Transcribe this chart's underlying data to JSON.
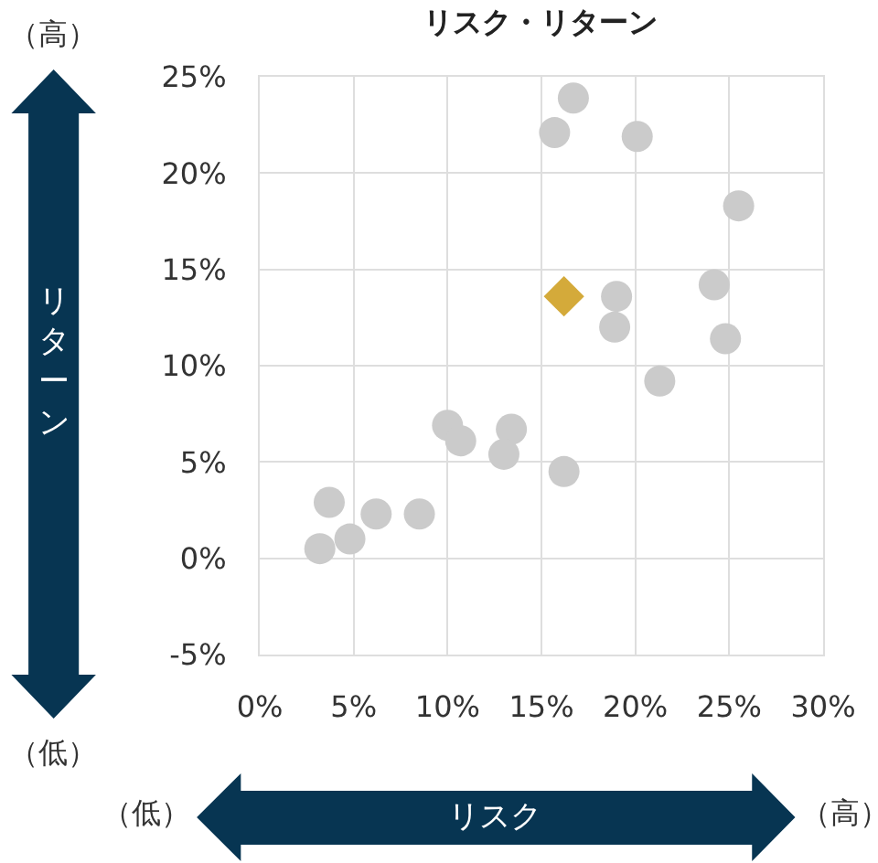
{
  "chart_data": {
    "type": "scatter",
    "title": "リスク・リターン",
    "xlabel": "リスク",
    "ylabel": "リターン",
    "annotations": [
      "（高）",
      "（低）",
      "（低）",
      "（高）"
    ],
    "xlim": [
      0,
      30
    ],
    "ylim": [
      -5,
      25
    ],
    "xticks": [
      {
        "value": 0,
        "label": "0%"
      },
      {
        "value": 5,
        "label": "5%"
      },
      {
        "value": 10,
        "label": "10%"
      },
      {
        "value": 15,
        "label": "15%"
      },
      {
        "value": 20,
        "label": "20%"
      },
      {
        "value": 25,
        "label": "25%"
      },
      {
        "value": 30,
        "label": "30%"
      }
    ],
    "yticks": [
      {
        "value": -5,
        "label": "-5%"
      },
      {
        "value": 0,
        "label": "0%"
      },
      {
        "value": 5,
        "label": "5%"
      },
      {
        "value": 10,
        "label": "10%"
      },
      {
        "value": 15,
        "label": "15%"
      },
      {
        "value": 20,
        "label": "20%"
      },
      {
        "value": 25,
        "label": "25%"
      }
    ],
    "grid": true,
    "series": [
      {
        "color": "#cbcbcb",
        "marker": "circle",
        "x": [
          16.7,
          15.7,
          20.1,
          25.5,
          19.0,
          18.9,
          24.2,
          24.8,
          21.3,
          10.0,
          10.7,
          13.4,
          13.0,
          16.2,
          3.7,
          6.2,
          8.5,
          4.8,
          3.2
        ],
        "values": [
          23.9,
          22.1,
          21.9,
          18.3,
          13.6,
          12.0,
          14.2,
          11.4,
          9.2,
          6.9,
          6.1,
          6.7,
          5.4,
          4.5,
          2.9,
          2.3,
          2.3,
          1.0,
          0.5
        ]
      },
      {
        "color": "#d4aa3a",
        "marker": "diamond",
        "x": [
          16.2
        ],
        "values": [
          13.6
        ]
      }
    ]
  }
}
